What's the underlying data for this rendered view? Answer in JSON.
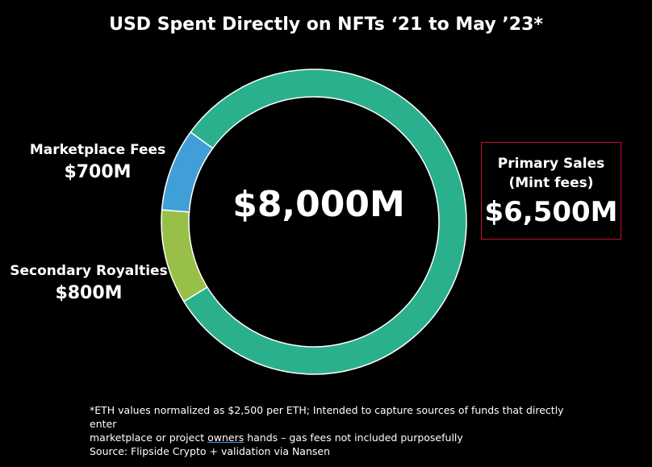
{
  "chart_data": {
    "type": "pie",
    "title": "USD Spent Directly on NFTs ‘21 to May ’23*",
    "center_label": "$8,000M",
    "total": 8000,
    "unit": "USD millions",
    "slices": [
      {
        "name": "Primary Sales",
        "name_line2": "(Mint fees)",
        "value": 6500,
        "value_label": "$6,500M",
        "color": "#2bb08d"
      },
      {
        "name": "Marketplace Fees",
        "value": 700,
        "value_label": "$700M",
        "color": "#3f9fd6"
      },
      {
        "name": "Secondary Royalties",
        "value": 800,
        "value_label": "$800M",
        "color": "#98c049"
      }
    ],
    "ring_stroke": "#000000"
  },
  "footnote": {
    "line1": "*ETH values normalized as $2,500 per ETH; Intended to capture sources of funds that directly enter",
    "line2_a": "marketplace or project ",
    "line2_b": "owners",
    "line2_c": " hands – gas fees not included purposefully",
    "line3": "Source: Flipside Crypto + validation via Nansen"
  }
}
